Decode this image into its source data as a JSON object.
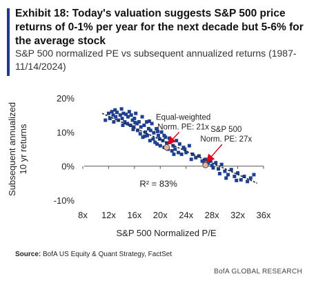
{
  "header": {
    "title": "Exhibit 18: Today's valuation suggests S&P 500 price returns of 0-1% per year for the next decade but 5-6% for the average stock",
    "subtitle": "S&P 500 normalized PE vs subsequent annualized returns (1987-11/14/2024)"
  },
  "source": {
    "label": "Source:",
    "text": "BofA US Equity & Quant Strategy, FactSet"
  },
  "footer": {
    "brand": "BofA GLOBAL RESEARCH"
  },
  "colors": {
    "points": "#1f3f8f",
    "trend": "#222222",
    "marker": "#e8b4a0",
    "arrow": "#e0001b"
  },
  "chart_data": {
    "type": "scatter",
    "xlabel": "S&P 500 Normalized P/E",
    "ylabel": "Subsequent annualized 10 yr returns",
    "xlim": [
      8,
      36
    ],
    "ylim": [
      -10,
      20
    ],
    "xticks": [
      "8x",
      "12x",
      "16x",
      "20x",
      "24x",
      "28x",
      "32x",
      "36x"
    ],
    "yticks": [
      "-10%",
      "0%",
      "10%",
      "20%"
    ],
    "grid": false,
    "trendline": {
      "x1": 11,
      "y1": 15.5,
      "x2": 35,
      "y2": -5
    },
    "r_squared_label": "R² = 83%",
    "annotations": [
      {
        "text1": "Equal-weighted",
        "text2": "Norm. PE: 21x",
        "x": 21,
        "y": 5.5
      },
      {
        "text1": "S&P 500",
        "text2": "Norm. PE: 27x",
        "x": 27,
        "y": 0.3
      }
    ],
    "points": [
      [
        11.5,
        13.5
      ],
      [
        12.0,
        15.5
      ],
      [
        12.2,
        14.0
      ],
      [
        12.5,
        16.0
      ],
      [
        12.7,
        15.0
      ],
      [
        13.0,
        16.5
      ],
      [
        13.1,
        14.5
      ],
      [
        13.3,
        15.8
      ],
      [
        13.5,
        13.5
      ],
      [
        13.8,
        15.0
      ],
      [
        14.0,
        16.8
      ],
      [
        14.1,
        14.0
      ],
      [
        14.3,
        15.5
      ],
      [
        14.5,
        13.0
      ],
      [
        14.7,
        15.2
      ],
      [
        14.9,
        12.5
      ],
      [
        15.0,
        14.5
      ],
      [
        15.2,
        16.0
      ],
      [
        15.4,
        12.0
      ],
      [
        15.5,
        15.0
      ],
      [
        15.7,
        13.5
      ],
      [
        15.9,
        11.5
      ],
      [
        16.0,
        14.0
      ],
      [
        16.2,
        15.5
      ],
      [
        16.4,
        12.5
      ],
      [
        16.5,
        10.5
      ],
      [
        16.7,
        13.0
      ],
      [
        16.9,
        9.5
      ],
      [
        17.0,
        11.5
      ],
      [
        17.2,
        14.5
      ],
      [
        17.3,
        8.5
      ],
      [
        17.5,
        12.0
      ],
      [
        17.7,
        10.0
      ],
      [
        17.9,
        13.0
      ],
      [
        18.0,
        9.0
      ],
      [
        18.2,
        11.0
      ],
      [
        18.4,
        7.5
      ],
      [
        18.5,
        10.5
      ],
      [
        18.7,
        12.5
      ],
      [
        18.9,
        8.0
      ],
      [
        19.0,
        9.8
      ],
      [
        19.2,
        7.0
      ],
      [
        19.4,
        11.0
      ],
      [
        19.5,
        6.5
      ],
      [
        19.7,
        9.0
      ],
      [
        19.9,
        8.0
      ],
      [
        20.0,
        6.0
      ],
      [
        20.2,
        10.0
      ],
      [
        20.4,
        7.5
      ],
      [
        20.6,
        5.5
      ],
      [
        20.8,
        8.5
      ],
      [
        21.0,
        6.8
      ],
      [
        21.2,
        5.0
      ],
      [
        21.5,
        7.0
      ],
      [
        21.8,
        4.5
      ],
      [
        22.0,
        6.0
      ],
      [
        22.3,
        5.0
      ],
      [
        22.5,
        7.5
      ],
      [
        22.8,
        4.0
      ],
      [
        23.0,
        6.5
      ],
      [
        23.3,
        3.5
      ],
      [
        23.6,
        5.5
      ],
      [
        24.0,
        4.0
      ],
      [
        24.5,
        6.0
      ],
      [
        25.0,
        3.5
      ],
      [
        25.5,
        2.5
      ],
      [
        26.0,
        3.0
      ],
      [
        26.5,
        1.5
      ],
      [
        27.0,
        2.0
      ],
      [
        27.4,
        0.8
      ],
      [
        27.8,
        1.5
      ],
      [
        28.2,
        -0.5
      ],
      [
        28.6,
        1.0
      ],
      [
        29.0,
        -0.8
      ],
      [
        29.5,
        0.5
      ],
      [
        30.0,
        -1.5
      ],
      [
        30.5,
        -2.5
      ],
      [
        31.0,
        -1.0
      ],
      [
        31.5,
        -3.0
      ],
      [
        32.0,
        -2.0
      ],
      [
        32.5,
        -4.0
      ],
      [
        33.0,
        -3.0
      ],
      [
        33.5,
        -4.5
      ],
      [
        34.0,
        -3.5
      ],
      [
        34.5,
        -2.5
      ],
      [
        30.2,
        -3.5
      ],
      [
        29.2,
        -2.2
      ],
      [
        31.8,
        -4.2
      ],
      [
        28.0,
        0.2
      ],
      [
        26.8,
        1.0
      ],
      [
        12.8,
        13.0
      ],
      [
        14.2,
        12.0
      ],
      [
        16.1,
        12.8
      ],
      [
        17.6,
        8.8
      ],
      [
        19.6,
        10.2
      ],
      [
        22.1,
        3.5
      ],
      [
        24.8,
        2.0
      ],
      [
        21.4,
        8.2
      ],
      [
        23.8,
        5.0
      ],
      [
        18.3,
        13.2
      ],
      [
        20.6,
        9.0
      ],
      [
        15.8,
        10.8
      ]
    ]
  }
}
